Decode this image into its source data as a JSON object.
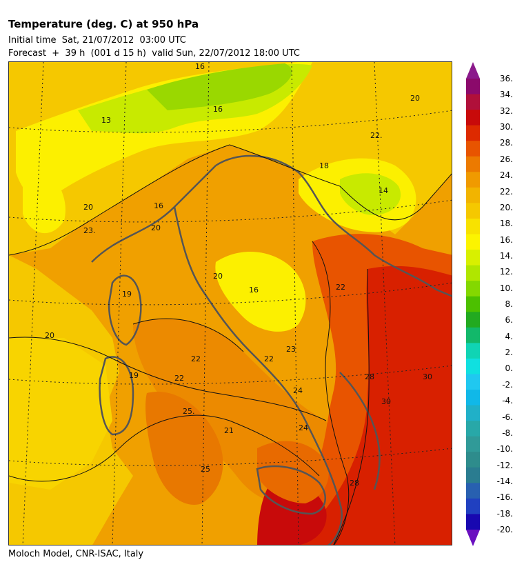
{
  "header": {
    "title": "Temperature (deg. C) at 950 hPa",
    "initial_time": "Initial time  Sat, 21/07/2012  03:00 UTC",
    "forecast": "Forecast  +  39 h  (001 d 15 h)  valid Sun, 22/07/2012 18:00 UTC"
  },
  "footer": {
    "credit": "Moloch Model, CNR-ISAC, Italy"
  },
  "map": {
    "contour_labels": [
      "16",
      "16",
      "13",
      "20",
      "22.",
      "18",
      "14",
      "16",
      "20",
      "20",
      "23.",
      "20",
      "16",
      "22",
      "22",
      "23",
      "19",
      "20",
      "19",
      "22",
      "22",
      "25.",
      "21",
      "25",
      "24",
      "28",
      "30",
      "30",
      "28",
      "24"
    ]
  },
  "colorbar": {
    "labels": [
      "36.",
      "34.",
      "32.",
      "30.",
      "28.",
      "26.",
      "24.",
      "22.",
      "20.",
      "18.",
      "16.",
      "14.",
      "12.",
      "10.",
      "8.",
      "6.",
      "4.",
      "2.",
      "0.",
      "-2.",
      "-4.",
      "-6.",
      "-8.",
      "-10.",
      "-12.",
      "-14.",
      "-16.",
      "-18.",
      "-20."
    ],
    "colors": [
      "#8b0a6b",
      "#b0103a",
      "#c80a0a",
      "#dd2a00",
      "#e85400",
      "#ec7a00",
      "#f09a00",
      "#f2b400",
      "#f5c800",
      "#f8e200",
      "#fcf400",
      "#d8f000",
      "#b0e600",
      "#84d800",
      "#4cc000",
      "#22aa20",
      "#12b86a",
      "#10d4b4",
      "#10e0e0",
      "#20c8f0",
      "#10b8e8",
      "#20b0c8",
      "#28a8a8",
      "#309a98",
      "#2e8c8c",
      "#2a7c90",
      "#2860b0",
      "#2040c0",
      "#1808b0"
    ],
    "top_arrow_color": "#8b1a8b",
    "bottom_arrow_color": "#6a10c0"
  }
}
